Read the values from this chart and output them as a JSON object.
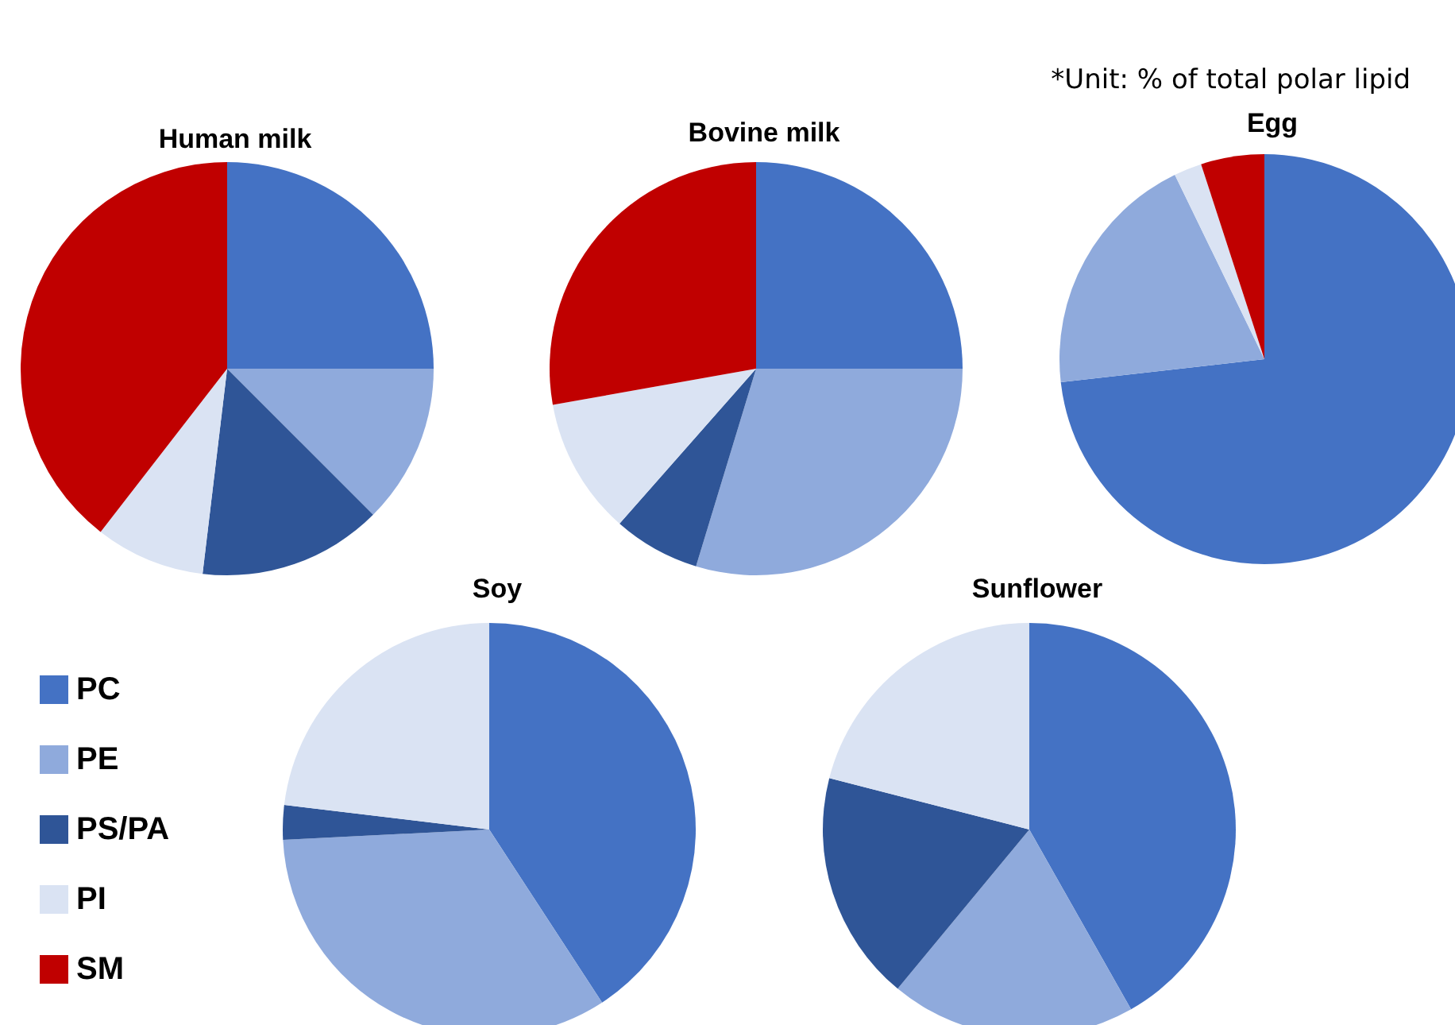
{
  "chart_data": {
    "type": "pie",
    "categories": [
      "PC",
      "PE",
      "PS/PA",
      "PI",
      "SM"
    ],
    "colors": [
      "#4472c4",
      "#8faadc",
      "#2f5597",
      "#dae3f3",
      "#c00000"
    ],
    "legend": "bottom left",
    "annotations": [
      "*Unit: % of total polar lipid"
    ],
    "series": [
      {
        "name": "Human milk",
        "values": [
          25,
          12.5,
          14.4,
          8.6,
          39.5
        ]
      },
      {
        "name": "Bovine milk",
        "values": [
          25,
          29.7,
          6.8,
          10.7,
          27.8
        ]
      },
      {
        "name": "Egg",
        "values": [
          73.2,
          19.6,
          0,
          2.2,
          5
        ]
      },
      {
        "name": "Soy",
        "values": [
          40.8,
          33.4,
          2.7,
          23.1,
          0
        ]
      },
      {
        "name": "Sunflower",
        "values": [
          41.8,
          19.2,
          18,
          21,
          0
        ]
      }
    ]
  }
}
